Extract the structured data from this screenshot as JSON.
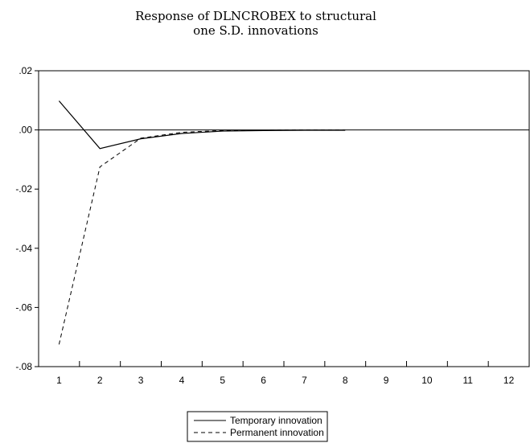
{
  "chart_data": {
    "type": "line",
    "title_lines": [
      "Response of DLNCROBEX to structural",
      "one S.D. innovations"
    ],
    "x": [
      1,
      2,
      3,
      4,
      5,
      6,
      7,
      8,
      9,
      10,
      11,
      12
    ],
    "x_tick_labels": [
      "1",
      "2",
      "3",
      "4",
      "5",
      "6",
      "7",
      "8",
      "9",
      "10",
      "11",
      "12"
    ],
    "y_tick_values": [
      0.02,
      0.0,
      -0.02,
      -0.04,
      -0.06,
      -0.08
    ],
    "y_tick_labels": [
      ".02",
      ".00",
      "-.02",
      "-.04",
      "-.06",
      "-.08"
    ],
    "ylim": [
      -0.08,
      0.02
    ],
    "xlim": [
      0.5,
      12.5
    ],
    "zero_line": true,
    "grid": false,
    "legend_position": "bottom-center",
    "series": [
      {
        "name": "Temporary innovation",
        "style": "solid",
        "values": [
          0.0098,
          -0.0063,
          -0.003,
          -0.0012,
          -0.0004,
          -0.0002,
          -0.0001,
          -0.0001,
          null,
          null,
          null,
          null
        ]
      },
      {
        "name": "Permanent innovation",
        "style": "dashed",
        "values": [
          -0.0725,
          -0.0125,
          -0.0028,
          -0.0008,
          -0.0002,
          -0.0001,
          0.0,
          0.0,
          null,
          null,
          null,
          null
        ]
      }
    ]
  }
}
